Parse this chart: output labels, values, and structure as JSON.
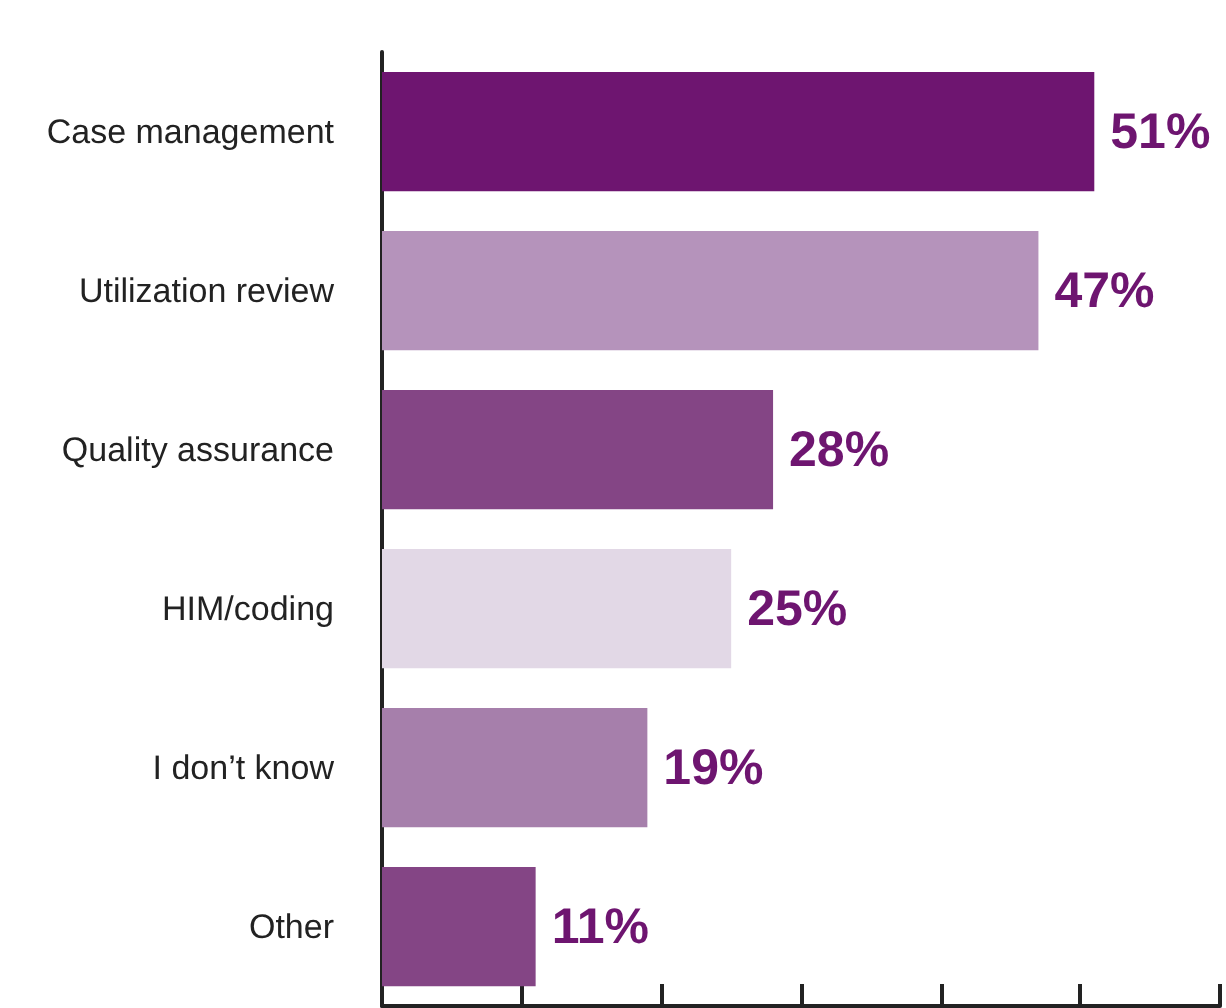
{
  "chart_data": {
    "type": "bar",
    "orientation": "horizontal",
    "categories": [
      "Case management",
      "Utilization review",
      "Quality assurance",
      "HIM/coding",
      "I don’t know",
      "Other"
    ],
    "values": [
      51,
      47,
      28,
      25,
      19,
      11
    ],
    "colors": [
      "#6e1570",
      "#b593bb",
      "#844585",
      "#e2d8e6",
      "#a67fab",
      "#844585"
    ],
    "value_labels": [
      "51%",
      "47%",
      "28%",
      "25%",
      "19%",
      "11%"
    ],
    "xlim": [
      0,
      60
    ],
    "xticks": [
      {
        "value": 0,
        "label": null
      },
      {
        "value": 10,
        "label": null
      },
      {
        "value": 20,
        "label": null
      },
      {
        "value": 30,
        "label": null
      },
      {
        "value": 40,
        "label": null
      },
      {
        "value": 50,
        "label": null
      },
      {
        "value": 60,
        "label": null
      }
    ],
    "tick_labels": "y"
  }
}
